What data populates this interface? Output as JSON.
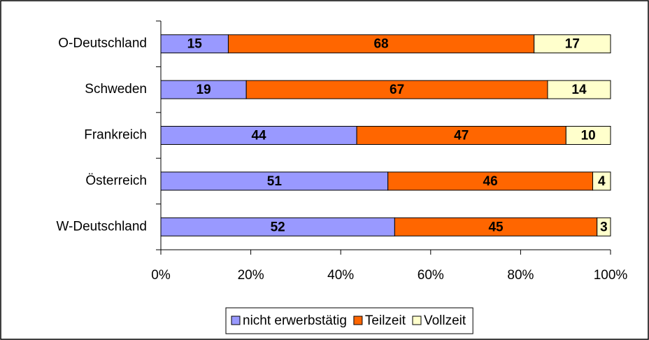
{
  "chart_data": {
    "type": "bar",
    "orientation": "horizontal",
    "stacking": "percent",
    "categories": [
      "O-Deutschland",
      "Schweden",
      "Frankreich",
      "Österreich",
      "W-Deutschland"
    ],
    "series": [
      {
        "name": "nicht erwerbstätig",
        "color": "#9999ff",
        "values": [
          15,
          19,
          44,
          51,
          52
        ]
      },
      {
        "name": "Teilzeit",
        "color": "#ff6600",
        "values": [
          68,
          67,
          47,
          46,
          45
        ]
      },
      {
        "name": "Vollzeit",
        "color": "#ffffcc",
        "values": [
          17,
          14,
          10,
          4,
          3
        ]
      }
    ],
    "xlim": [
      0,
      100
    ],
    "xticks": [
      {
        "value": 0,
        "label": "0%"
      },
      {
        "value": 20,
        "label": "20%"
      },
      {
        "value": 40,
        "label": "40%"
      },
      {
        "value": 60,
        "label": "60%"
      },
      {
        "value": 80,
        "label": "80%"
      },
      {
        "value": 100,
        "label": "100%"
      }
    ],
    "legend": "bottom"
  }
}
